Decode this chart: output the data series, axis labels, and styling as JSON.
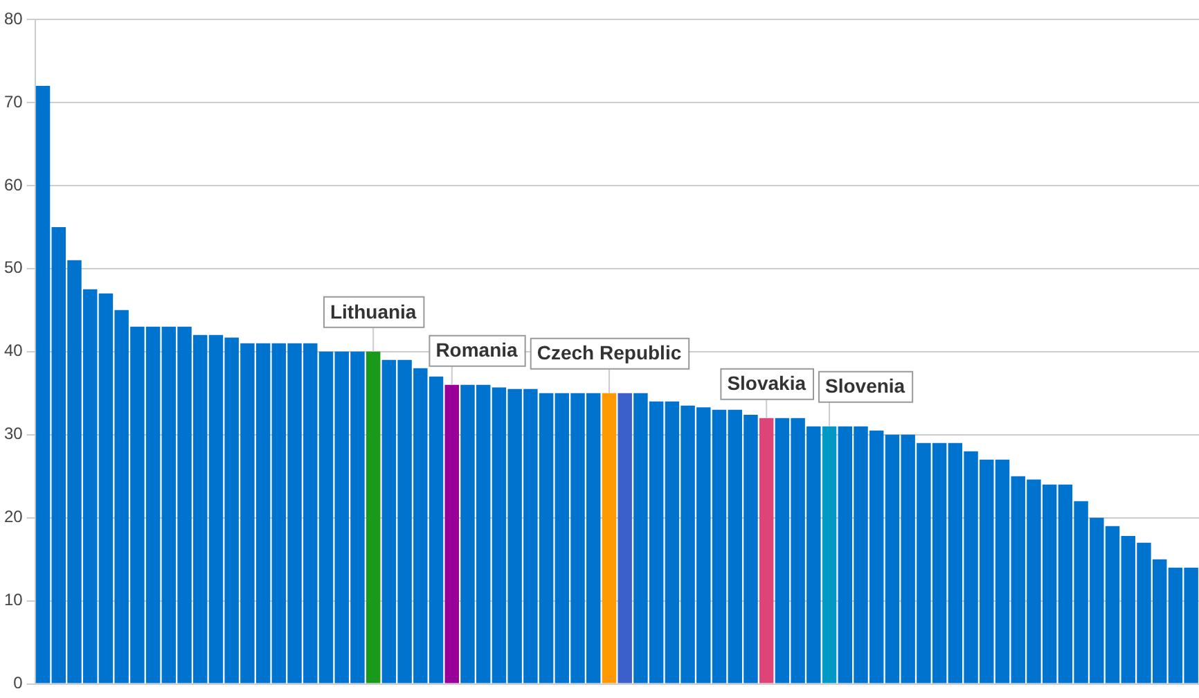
{
  "chart_data": {
    "type": "bar",
    "categories": [
      null,
      null,
      null,
      null,
      null,
      null,
      null,
      null,
      null,
      null,
      null,
      null,
      null,
      null,
      null,
      null,
      null,
      null,
      null,
      null,
      null,
      null,
      null,
      null,
      null,
      null,
      null,
      null,
      null,
      null,
      null,
      null,
      null,
      null,
      null,
      null,
      null,
      null,
      null,
      null,
      null,
      null,
      null,
      null,
      null,
      null,
      null,
      null,
      null,
      null,
      null,
      null,
      null,
      null,
      null,
      null,
      null,
      null,
      null,
      null,
      null,
      null,
      null,
      null,
      null,
      null,
      null,
      null,
      null,
      null,
      null,
      null,
      null,
      null
    ],
    "values": [
      72,
      55,
      51,
      47.5,
      47,
      45,
      43,
      43,
      43,
      43,
      42,
      42,
      41.7,
      41,
      41,
      41,
      41,
      41,
      40,
      40,
      40,
      40,
      39,
      39,
      38,
      37,
      36,
      36,
      36,
      35.7,
      35.5,
      35.5,
      35,
      35,
      35,
      35,
      35,
      35,
      35,
      34,
      34,
      33.5,
      33.3,
      33,
      33,
      32.4,
      32,
      32,
      32,
      31,
      31,
      31,
      31,
      30.5,
      30,
      30,
      29,
      29,
      29,
      28,
      27,
      27,
      25,
      24.6,
      24,
      24,
      22,
      20,
      19,
      17.8,
      17,
      15,
      14,
      14
    ],
    "colors": [
      "#0073cf",
      "#0073cf",
      "#0073cf",
      "#0073cf",
      "#0073cf",
      "#0073cf",
      "#0073cf",
      "#0073cf",
      "#0073cf",
      "#0073cf",
      "#0073cf",
      "#0073cf",
      "#0073cf",
      "#0073cf",
      "#0073cf",
      "#0073cf",
      "#0073cf",
      "#0073cf",
      "#0073cf",
      "#0073cf",
      "#0073cf",
      "#1a9a1a",
      "#0073cf",
      "#0073cf",
      "#0073cf",
      "#0073cf",
      "#990099",
      "#0073cf",
      "#0073cf",
      "#0073cf",
      "#0073cf",
      "#0073cf",
      "#0073cf",
      "#0073cf",
      "#0073cf",
      "#0073cf",
      "#ff9900",
      "#3b60cc",
      "#0073cf",
      "#0073cf",
      "#0073cf",
      "#0073cf",
      "#0073cf",
      "#0073cf",
      "#0073cf",
      "#0073cf",
      "#dd4477",
      "#0073cf",
      "#0073cf",
      "#0073cf",
      "#0099c6",
      "#0073cf",
      "#0073cf",
      "#0073cf",
      "#0073cf",
      "#0073cf",
      "#0073cf",
      "#0073cf",
      "#0073cf",
      "#0073cf",
      "#0073cf",
      "#0073cf",
      "#0073cf",
      "#0073cf",
      "#0073cf",
      "#0073cf",
      "#0073cf",
      "#0073cf",
      "#0073cf",
      "#0073cf",
      "#0073cf",
      "#0073cf",
      "#0073cf",
      "#0073cf"
    ],
    "ylim": [
      0,
      80
    ],
    "yticks": [
      0,
      10,
      20,
      30,
      40,
      50,
      60,
      70,
      80
    ],
    "grid": "y",
    "annotations": [
      {
        "text": "Lithuania",
        "y": 40
      },
      {
        "text": "Romania",
        "y": 36
      },
      {
        "text": "Czech Republic",
        "y": 35
      },
      {
        "text": "Slovakia",
        "y": 32
      },
      {
        "text": "Slovenia",
        "y": 31
      }
    ]
  }
}
